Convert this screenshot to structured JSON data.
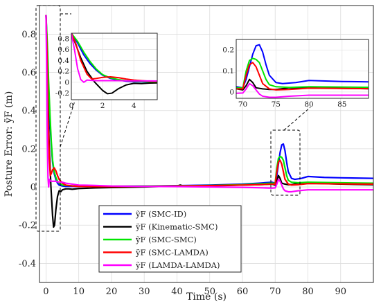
{
  "chart_data": {
    "type": "line",
    "xlabel": "Time (s)",
    "ylabel": "Posture Error: ỹF (m)",
    "xlim": [
      -2,
      100
    ],
    "ylim": [
      -0.5,
      0.95
    ],
    "xticks": [
      0,
      10,
      20,
      30,
      40,
      50,
      60,
      70,
      80,
      90
    ],
    "yticks": [
      -0.4,
      -0.2,
      0,
      0.2,
      0.4,
      0.6,
      0.8
    ],
    "grid": true,
    "legend_position": "bottom-center",
    "series": [
      {
        "name": "ỹF (SMC-ID)",
        "color": "#0000ff",
        "x": [
          0,
          0.4,
          0.8,
          1.2,
          1.6,
          2.0,
          2.5,
          3,
          3.5,
          4,
          5,
          6,
          8,
          10,
          15,
          20,
          30,
          40,
          50,
          60,
          65,
          69,
          70,
          70.5,
          71,
          71.5,
          72,
          72.5,
          73,
          73.5,
          74,
          75,
          76,
          78,
          80,
          85,
          90,
          100
        ],
        "y": [
          0.9,
          0.72,
          0.5,
          0.34,
          0.22,
          0.13,
          0.07,
          0.04,
          0.02,
          0.01,
          0.005,
          0.003,
          0.003,
          0.003,
          0.003,
          0.003,
          0.005,
          0.007,
          0.01,
          0.015,
          0.02,
          0.025,
          0.02,
          0.06,
          0.12,
          0.18,
          0.22,
          0.225,
          0.19,
          0.13,
          0.08,
          0.045,
          0.04,
          0.045,
          0.055,
          0.05,
          0.048,
          0.045
        ]
      },
      {
        "name": "ỹF (Kinematic-SMC)",
        "color": "#000000",
        "x": [
          0,
          0.3,
          0.6,
          1.0,
          1.5,
          2.0,
          2.3,
          2.6,
          3.0,
          3.5,
          4,
          4.5,
          5,
          6,
          7,
          8,
          10,
          15,
          20,
          30,
          40,
          41,
          42,
          50,
          60,
          65,
          69,
          70,
          70.5,
          71,
          71.5,
          72,
          73,
          74,
          75,
          77,
          80,
          90,
          100
        ],
        "y": [
          0.9,
          0.68,
          0.45,
          0.2,
          0.0,
          -0.15,
          -0.21,
          -0.2,
          -0.12,
          -0.05,
          -0.02,
          -0.025,
          -0.015,
          -0.01,
          -0.01,
          -0.012,
          -0.008,
          -0.005,
          -0.003,
          0.0,
          0.005,
          0.01,
          0.005,
          0.005,
          0.01,
          0.012,
          0.015,
          0.01,
          0.03,
          0.06,
          0.045,
          0.02,
          0.015,
          0.012,
          0.012,
          0.02,
          0.02,
          0.015,
          0.012
        ]
      },
      {
        "name": "ỹF (SMC-SMC)",
        "color": "#00e600",
        "x": [
          0,
          0.4,
          0.8,
          1.2,
          1.6,
          2.0,
          2.5,
          3,
          3.5,
          4,
          5,
          6,
          8,
          10,
          15,
          20,
          30,
          40,
          50,
          60,
          65,
          69,
          70,
          70.5,
          71,
          71.5,
          72,
          72.5,
          73,
          73.5,
          74,
          75,
          77,
          80,
          90,
          100
        ],
        "y": [
          0.9,
          0.75,
          0.55,
          0.38,
          0.24,
          0.14,
          0.08,
          0.05,
          0.03,
          0.02,
          0.01,
          0.008,
          0.006,
          0.005,
          0.004,
          0.004,
          0.005,
          0.006,
          0.008,
          0.012,
          0.016,
          0.02,
          0.02,
          0.1,
          0.15,
          0.16,
          0.155,
          0.14,
          0.1,
          0.06,
          0.035,
          0.025,
          0.022,
          0.025,
          0.022,
          0.02
        ]
      },
      {
        "name": "ỹF (SMC-LAMDA)",
        "color": "#ff0000",
        "x": [
          0,
          0.3,
          0.6,
          1.0,
          1.3,
          1.6,
          2.0,
          2.5,
          3,
          3.5,
          4,
          5,
          6,
          8,
          10,
          15,
          20,
          30,
          40,
          50,
          60,
          65,
          69,
          70,
          70.5,
          71,
          71.5,
          72,
          72.5,
          73,
          74,
          75,
          77,
          80,
          90,
          100
        ],
        "y": [
          0.9,
          0.7,
          0.4,
          0.15,
          0.06,
          0.07,
          0.09,
          0.1,
          0.085,
          0.06,
          0.04,
          0.02,
          0.01,
          0.005,
          0.003,
          0.002,
          0.002,
          0.003,
          0.005,
          0.007,
          0.01,
          0.012,
          0.015,
          0.015,
          0.08,
          0.13,
          0.14,
          0.12,
          0.08,
          0.04,
          0.015,
          0.01,
          0.012,
          0.018,
          0.016,
          0.015
        ]
      },
      {
        "name": "ỹF (LAMDA-LAMDA)",
        "color": "#ff00ff",
        "x": [
          0,
          0.2,
          0.4,
          0.6,
          0.8,
          1.0,
          1.5,
          2,
          3,
          4,
          5,
          6,
          8,
          10,
          15,
          20,
          30,
          40,
          50,
          60,
          65,
          69,
          70,
          70.5,
          71,
          71.5,
          72,
          72.5,
          73,
          74,
          75,
          77,
          80,
          90,
          100
        ],
        "y": [
          0.9,
          0.6,
          0.25,
          0.05,
          0.0,
          0.04,
          0.03,
          0.03,
          0.03,
          0.025,
          0.025,
          0.02,
          0.015,
          0.01,
          0.008,
          0.005,
          0.003,
          0.002,
          0.0,
          -0.002,
          -0.004,
          -0.006,
          -0.005,
          0.015,
          0.04,
          0.03,
          0.01,
          -0.01,
          -0.02,
          -0.025,
          -0.025,
          -0.02,
          -0.015,
          -0.015,
          -0.015
        ]
      }
    ],
    "insets": [
      {
        "xlim": [
          0,
          5.5
        ],
        "ylim": [
          -0.32,
          0.9
        ],
        "xticks": [
          0,
          2,
          4
        ],
        "yticks": [
          -0.2,
          0,
          0.2,
          0.4,
          0.6,
          0.8
        ],
        "xtick_labels": [
          "0",
          "2",
          "4"
        ],
        "ytick_labels": [
          "-0.2",
          "0",
          "0.2",
          "0.4",
          "0.6",
          "0.8"
        ]
      },
      {
        "xlim": [
          69,
          89
        ],
        "ylim": [
          -0.03,
          0.25
        ],
        "xticks": [
          70,
          75,
          80,
          85
        ],
        "yticks": [
          0,
          0.1,
          0.2
        ],
        "xtick_labels": [
          "70",
          "75",
          "80",
          "85"
        ],
        "ytick_labels": [
          "0",
          "0.1",
          "0.2"
        ]
      }
    ]
  }
}
